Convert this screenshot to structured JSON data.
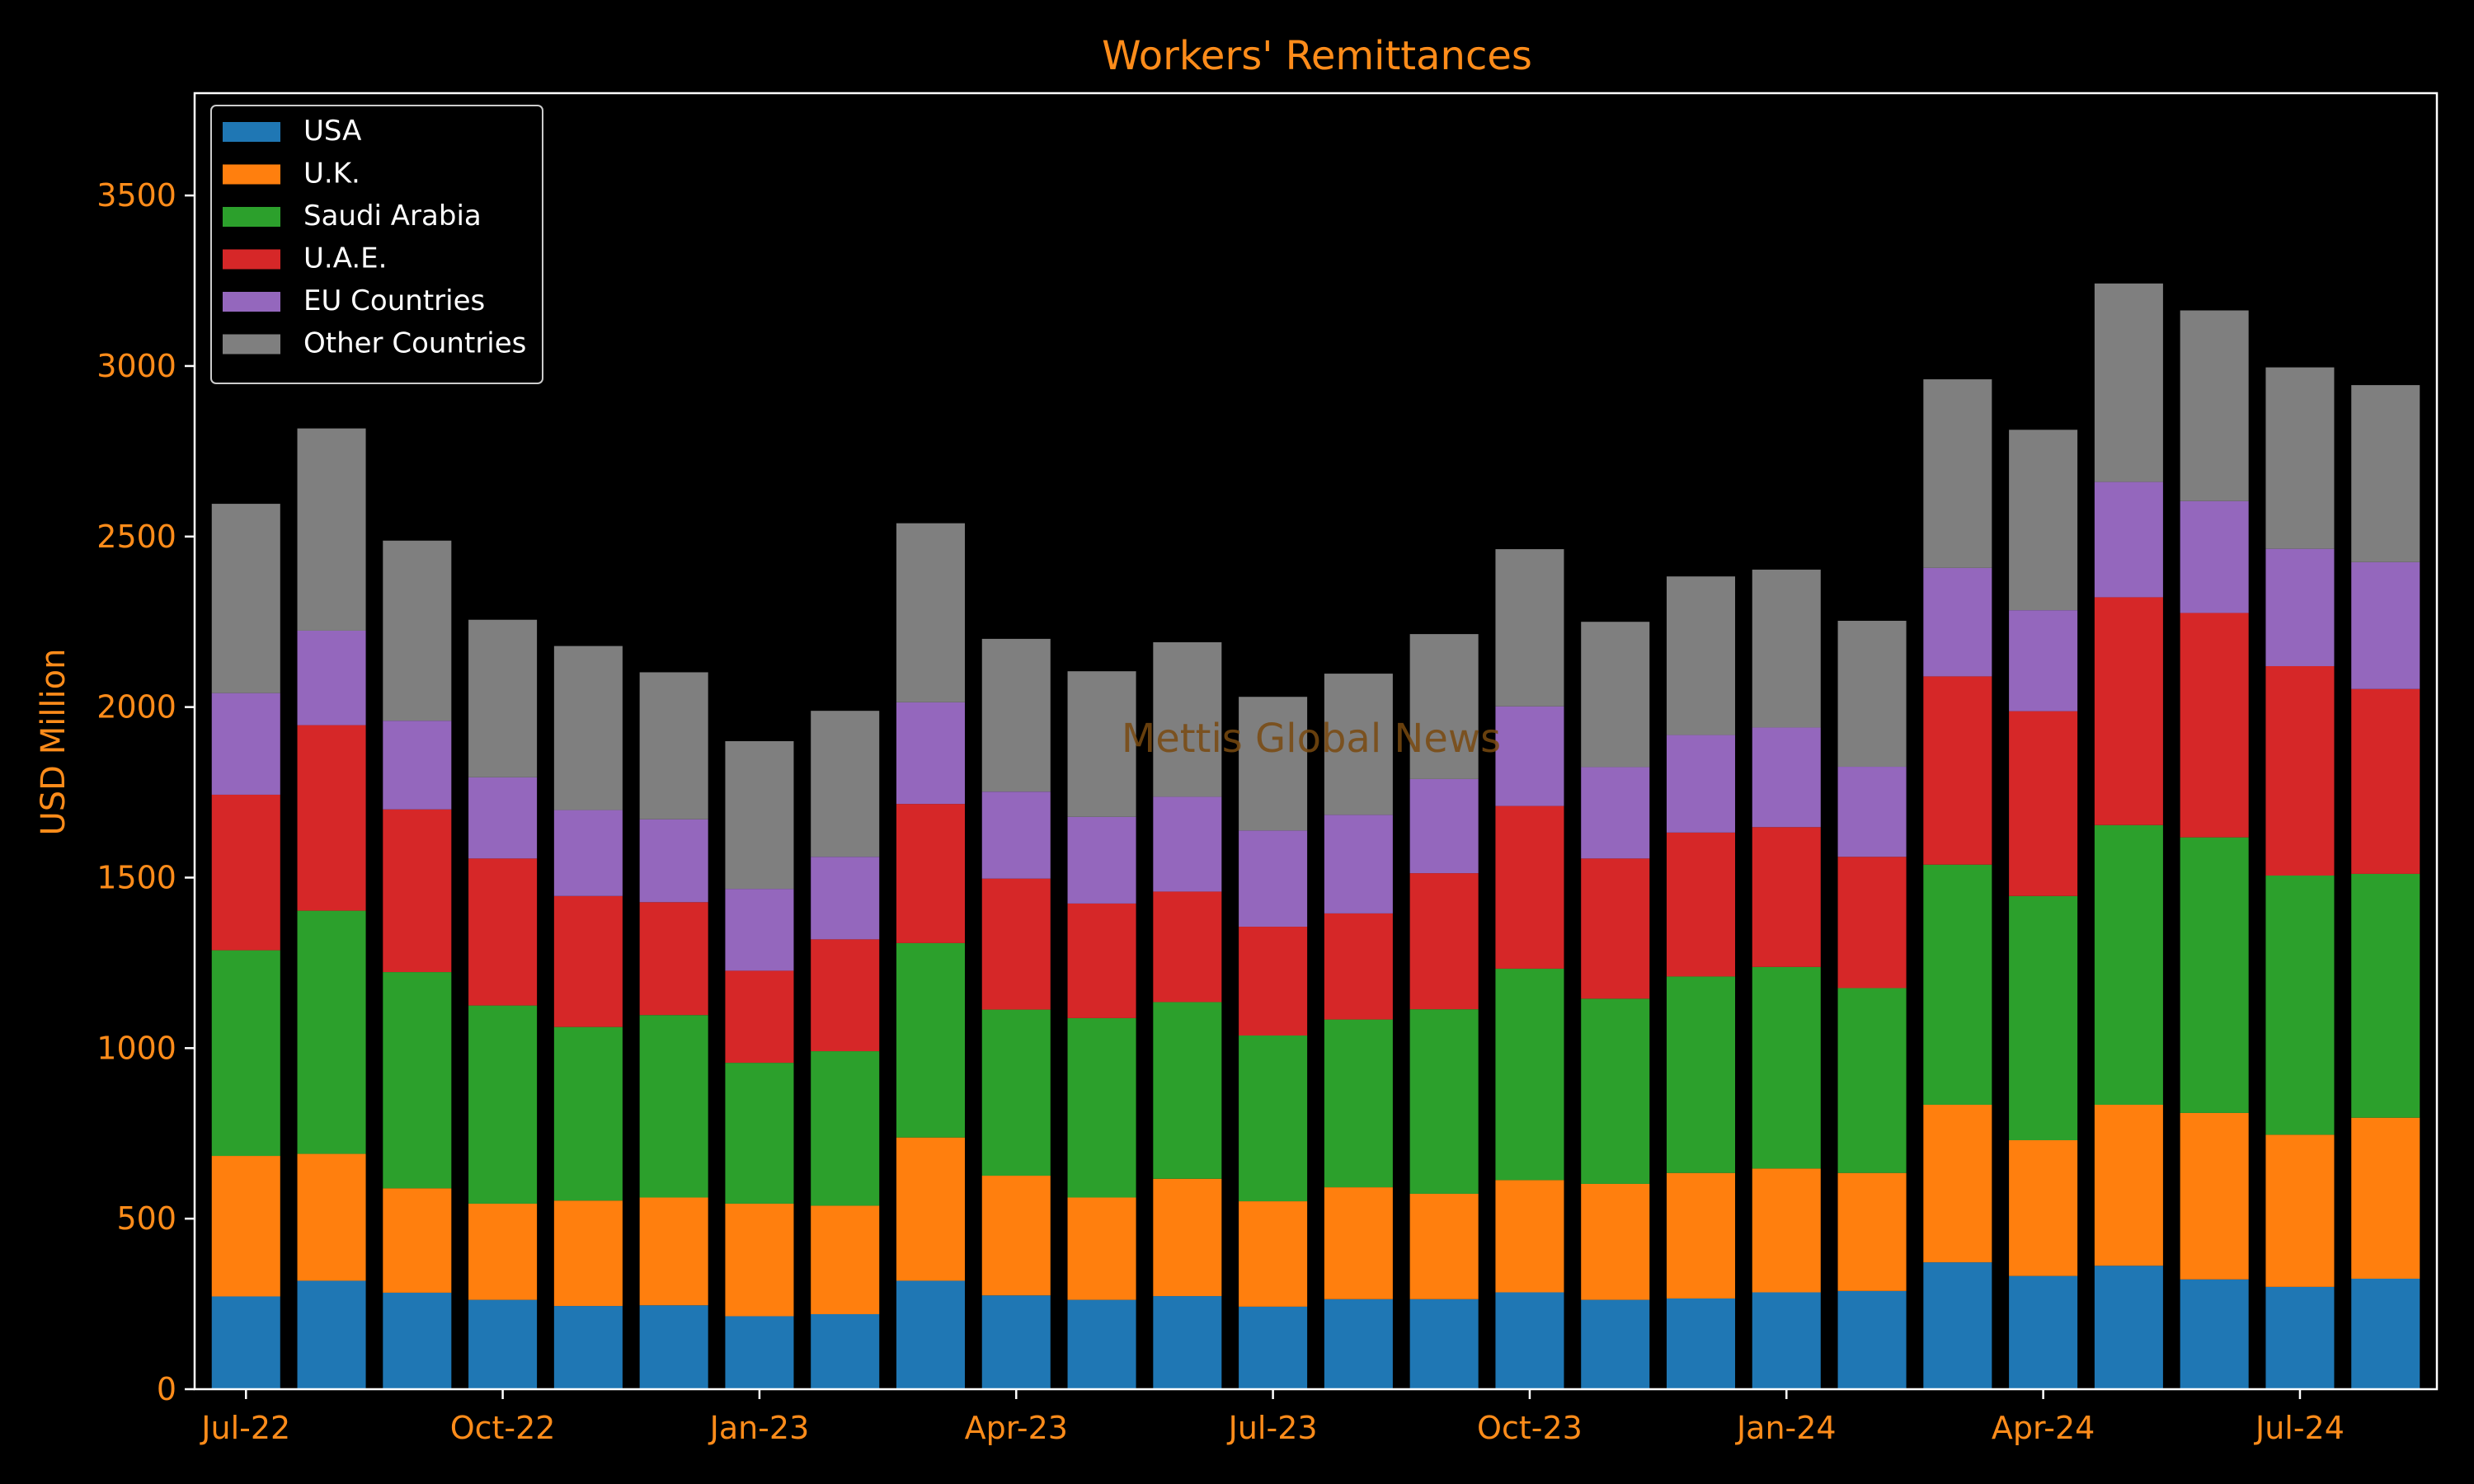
{
  "chart_data": {
    "type": "bar",
    "stacked": true,
    "title": "Workers' Remittances",
    "xlabel": "",
    "ylabel": "USD Million",
    "ylim": [
      0,
      3800
    ],
    "yticks": [
      0,
      500,
      1000,
      1500,
      2000,
      2500,
      3000,
      3500
    ],
    "grid": false,
    "legend_position": "top-left",
    "watermark": "Mettis Global News",
    "categories": [
      "Jul-22",
      "Aug-22",
      "Sep-22",
      "Oct-22",
      "Nov-22",
      "Dec-22",
      "Jan-23",
      "Feb-23",
      "Mar-23",
      "Apr-23",
      "May-23",
      "Jun-23",
      "Jul-23",
      "Aug-23",
      "Sep-23",
      "Oct-23",
      "Nov-23",
      "Dec-23",
      "Jan-24",
      "Feb-24",
      "Mar-24",
      "Apr-24",
      "May-24",
      "Jun-24",
      "Jul-24",
      "Aug-24"
    ],
    "xtick_labels": [
      {
        "index": 0,
        "label": "Jul-22"
      },
      {
        "index": 3,
        "label": "Oct-22"
      },
      {
        "index": 6,
        "label": "Jan-23"
      },
      {
        "index": 9,
        "label": "Apr-23"
      },
      {
        "index": 12,
        "label": "Jul-23"
      },
      {
        "index": 15,
        "label": "Oct-23"
      },
      {
        "index": 18,
        "label": "Jan-24"
      },
      {
        "index": 21,
        "label": "Apr-24"
      },
      {
        "index": 24,
        "label": "Jul-24"
      }
    ],
    "series": [
      {
        "name": "USA",
        "color": "#1f77b4",
        "values": [
          272,
          318,
          283,
          262,
          244,
          246,
          214,
          220,
          318,
          275,
          262,
          273,
          242,
          264,
          264,
          284,
          262,
          266,
          284,
          288,
          372,
          332,
          362,
          322,
          300,
          324
        ]
      },
      {
        "name": "U.K.",
        "color": "#ff7f0e",
        "values": [
          412,
          372,
          306,
          282,
          309,
          316,
          330,
          318,
          420,
          351,
          300,
          344,
          309,
          328,
          309,
          329,
          340,
          368,
          363,
          346,
          462,
          398,
          472,
          488,
          446,
          472
        ]
      },
      {
        "name": "Saudi Arabia",
        "color": "#2ca02c",
        "values": [
          603,
          713,
          634,
          581,
          509,
          535,
          413,
          453,
          570,
          487,
          526,
          518,
          486,
          492,
          541,
          620,
          543,
          576,
          591,
          542,
          704,
          716,
          820,
          808,
          760,
          715
        ]
      },
      {
        "name": "U.A.E.",
        "color": "#d62728",
        "values": [
          456,
          544,
          477,
          431,
          384,
          331,
          270,
          328,
          408,
          384,
          336,
          324,
          319,
          311,
          399,
          477,
          411,
          422,
          410,
          385,
          552,
          542,
          668,
          658,
          614,
          542
        ]
      },
      {
        "name": "EU Countries",
        "color": "#9467bd",
        "values": [
          298,
          277,
          260,
          238,
          252,
          243,
          240,
          242,
          298,
          255,
          254,
          278,
          282,
          289,
          276,
          292,
          268,
          286,
          292,
          264,
          318,
          296,
          338,
          328,
          344,
          372
        ]
      },
      {
        "name": "Other Countries",
        "color": "#7f7f7f",
        "values": [
          555,
          593,
          528,
          462,
          481,
          431,
          433,
          428,
          525,
          448,
          427,
          453,
          392,
          414,
          425,
          461,
          426,
          465,
          463,
          428,
          553,
          529,
          582,
          559,
          532,
          519
        ]
      }
    ]
  }
}
